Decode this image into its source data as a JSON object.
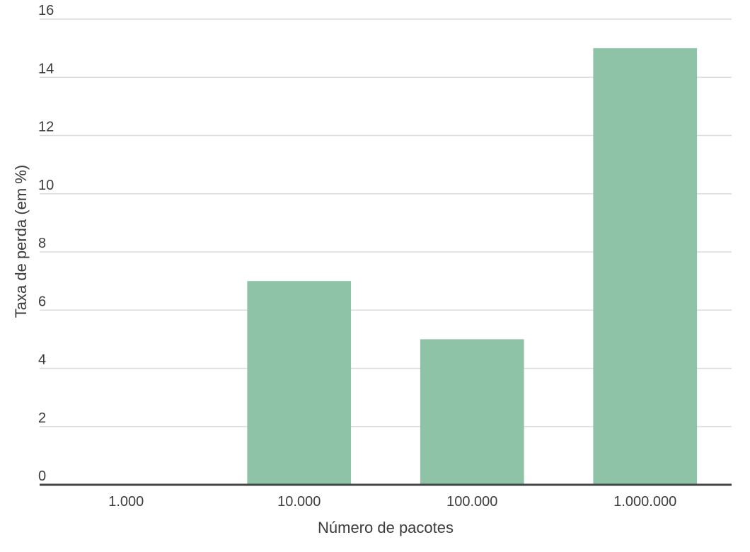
{
  "chart_data": {
    "type": "bar",
    "title": "",
    "xlabel": "Número de pacotes",
    "ylabel": "Taxa de perda (em %)",
    "categories": [
      "1.000",
      "10.000",
      "100.000",
      "1.000.000"
    ],
    "values": [
      0,
      7,
      5,
      15
    ],
    "ylim": [
      0,
      16
    ],
    "yticks": [
      0,
      2,
      4,
      6,
      8,
      10,
      12,
      14,
      16
    ],
    "ytick_labels": [
      "0",
      "2",
      "4",
      "6",
      "8",
      "10",
      "12",
      "14",
      "16"
    ],
    "grid": true,
    "legend": "none",
    "colors": {
      "bar": "#8fc3a7",
      "grid": "#dcdcdc",
      "baseline": "#444444",
      "text": "#3c3c3c"
    }
  }
}
